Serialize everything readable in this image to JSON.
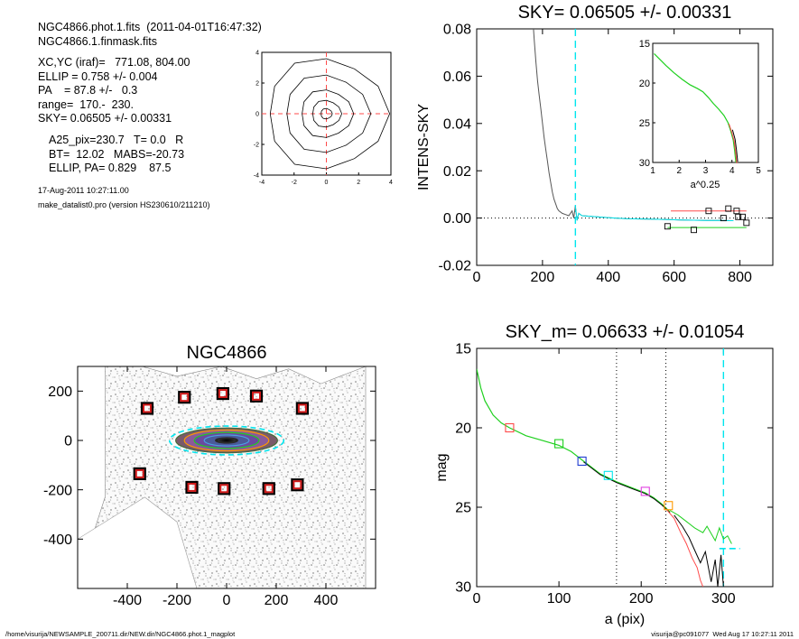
{
  "info": {
    "file_line": "NGC4866.phot.1.fits  (2011-04-01T16:47:32)",
    "mask_line": "NGC4866.1.finmask.fits",
    "xcyc": "XC,YC (iraf)=   771.08, 804.00",
    "ellip": "ELLIP = 0.758 +/- 0.004",
    "pa": "PA    = 87.8 +/-   0.3",
    "range": "range=  170.-  230.",
    "sky": "SKY= 0.06505 +/- 0.00331",
    "a25": "A25_pix=230.7   T= 0.0   R",
    "bt": "BT=  12.02   MABS=-20.73",
    "ellip_pa": "ELLIP, PA= 0.829    87.5",
    "date": "17-Aug-2011 10:27:11.00",
    "program": "make_datalist0.pro (version HS230610/211210)"
  },
  "footer": {
    "left": "/home/visurija/NEWSAMPLE_200711.dir/NEW.dir/NGC4866.phot.1_magplot",
    "right": "visurija@pc091077  Wed Aug 17 10:27:11 2011"
  },
  "colors": {
    "axis": "#000000",
    "cyan": "#00e5ee",
    "green": "#1ed01e",
    "red": "#ff4a4a",
    "blue": "#1f3cd0",
    "orange": "#ff9a00",
    "magenta": "#e040e0",
    "grey": "#555555"
  },
  "chart_data": [
    {
      "id": "contour",
      "type": "contour",
      "xlim": [
        -4,
        4
      ],
      "ylim": [
        -4,
        4
      ],
      "xticks": [
        "-4",
        "-2",
        "0",
        "2",
        "4"
      ],
      "yticks": [
        "-4",
        "-2",
        "0",
        "2",
        "4"
      ]
    },
    {
      "id": "sky",
      "type": "line",
      "title": "SKY= 0.06505 +/- 0.00331",
      "xlabel": "",
      "ylabel": "INTENS-SKY",
      "xlim": [
        0,
        900
      ],
      "ylim": [
        -0.02,
        0.08
      ],
      "xticks": [
        "0",
        "200",
        "400",
        "600",
        "800"
      ],
      "yticks": [
        "-0.02",
        "0.00",
        "0.02",
        "0.04",
        "0.06",
        "0.08"
      ],
      "sky_radius": 300,
      "profile": [
        [
          170,
          0.085
        ],
        [
          175,
          0.075
        ],
        [
          180,
          0.066
        ],
        [
          185,
          0.058
        ],
        [
          190,
          0.052
        ],
        [
          195,
          0.046
        ],
        [
          200,
          0.04
        ],
        [
          205,
          0.034
        ],
        [
          210,
          0.029
        ],
        [
          215,
          0.024
        ],
        [
          220,
          0.019
        ],
        [
          225,
          0.015
        ],
        [
          230,
          0.011
        ],
        [
          235,
          0.008
        ],
        [
          240,
          0.006
        ],
        [
          245,
          0.004
        ],
        [
          250,
          0.003
        ],
        [
          260,
          0.002
        ],
        [
          270,
          0.0015
        ],
        [
          280,
          0.001
        ],
        [
          290,
          0.003
        ],
        [
          295,
          0.0
        ],
        [
          300,
          0.005
        ],
        [
          305,
          -0.001
        ],
        [
          310,
          0.002
        ],
        [
          320,
          0.001
        ],
        [
          340,
          0.0008
        ],
        [
          380,
          0.0004
        ],
        [
          420,
          0.0
        ],
        [
          460,
          -0.0003
        ],
        [
          500,
          -0.0004
        ],
        [
          540,
          -0.0005
        ],
        [
          580,
          -0.0006
        ],
        [
          620,
          -0.0008
        ],
        [
          660,
          -0.0009
        ],
        [
          700,
          -0.001
        ],
        [
          740,
          -0.001
        ],
        [
          780,
          -0.0011
        ]
      ],
      "sky_points": [
        [
          580,
          -0.0035
        ],
        [
          660,
          -0.005
        ],
        [
          705,
          0.003
        ],
        [
          765,
          0.004
        ],
        [
          790,
          0.003
        ],
        [
          795,
          0.0005
        ],
        [
          808,
          0.0005
        ],
        [
          820,
          -0.002
        ],
        [
          750,
          0.0
        ]
      ],
      "red_level": [
        [
          590,
          0.003
        ],
        [
          820,
          0.003
        ]
      ],
      "green_level": [
        [
          580,
          -0.004
        ],
        [
          820,
          -0.004
        ]
      ],
      "inset": {
        "xlabel": "a^0.25",
        "xlim": [
          1,
          5
        ],
        "ylim": [
          30,
          15
        ],
        "xticks": [
          "1",
          "2",
          "3",
          "4",
          "5"
        ],
        "yticks": [
          "15",
          "20",
          "25",
          "30"
        ],
        "profile": [
          [
            1.05,
            16.3
          ],
          [
            1.2,
            16.8
          ],
          [
            1.5,
            17.8
          ],
          [
            1.8,
            18.7
          ],
          [
            2.1,
            19.5
          ],
          [
            2.4,
            20.2
          ],
          [
            2.7,
            20.7
          ],
          [
            2.9,
            21.1
          ],
          [
            3.1,
            21.8
          ],
          [
            3.3,
            22.6
          ],
          [
            3.5,
            23.3
          ],
          [
            3.7,
            24.1
          ],
          [
            3.85,
            25.0
          ],
          [
            3.95,
            26.0
          ],
          [
            4.05,
            27.2
          ],
          [
            4.1,
            28.5
          ],
          [
            4.15,
            30.0
          ]
        ]
      }
    },
    {
      "id": "image",
      "type": "image",
      "title": "NGC4866",
      "xlim": [
        -600,
        600
      ],
      "ylim": [
        -600,
        300
      ],
      "xticks": [
        "-400",
        "-200",
        "0",
        "200",
        "400"
      ],
      "yticks": [
        "-400",
        "-200",
        "0",
        "200"
      ],
      "boxes": [
        [
          -320,
          130
        ],
        [
          -170,
          175
        ],
        [
          -15,
          190
        ],
        [
          120,
          180
        ],
        [
          305,
          130
        ],
        [
          -350,
          -135
        ],
        [
          -140,
          -190
        ],
        [
          -10,
          -195
        ],
        [
          170,
          -195
        ],
        [
          285,
          -180
        ]
      ],
      "ellipses": [
        {
          "a": 230,
          "b": 58,
          "color": "#00e5ee",
          "dashed": true
        },
        {
          "a": 205,
          "b": 50,
          "color": "#4a6a3a",
          "fill": "#7a5a6a"
        },
        {
          "a": 170,
          "b": 42,
          "color": "#ff9a00",
          "fill": "#8a5a9a"
        },
        {
          "a": 130,
          "b": 32,
          "color": "#1ed01e",
          "fill": "#6a4aa0"
        },
        {
          "a": 90,
          "b": 22,
          "color": "#4aa0e0",
          "fill": "#4a5a9a"
        },
        {
          "a": 45,
          "b": 11,
          "color": "#2a2a2a",
          "fill": "#222222"
        }
      ]
    },
    {
      "id": "mag",
      "type": "line",
      "title": "SKY_m=  0.06633 +/- 0.01054",
      "xlabel": "a (pix)",
      "ylabel": "mag",
      "xlim": [
        0,
        360
      ],
      "ylim": [
        30,
        15
      ],
      "xticks": [
        "0",
        "100",
        "200",
        "300"
      ],
      "yticks": [
        "15",
        "20",
        "25",
        "30"
      ],
      "range_lines": [
        170,
        230
      ],
      "sky_line": 300,
      "profile": [
        [
          0,
          16.3
        ],
        [
          5,
          17.5
        ],
        [
          10,
          18.3
        ],
        [
          20,
          19.2
        ],
        [
          30,
          19.7
        ],
        [
          40,
          20.0
        ],
        [
          60,
          20.5
        ],
        [
          80,
          20.8
        ],
        [
          100,
          21.1
        ],
        [
          115,
          21.5
        ],
        [
          130,
          22.1
        ],
        [
          150,
          22.9
        ],
        [
          170,
          23.4
        ],
        [
          190,
          23.8
        ],
        [
          205,
          24.1
        ],
        [
          215,
          24.4
        ],
        [
          225,
          24.8
        ],
        [
          235,
          25.3
        ],
        [
          245,
          25.8
        ],
        [
          255,
          26.3
        ],
        [
          265,
          26.8
        ],
        [
          275,
          27.3
        ],
        [
          285,
          27.8
        ],
        [
          295,
          28.1
        ]
      ],
      "green_tail": [
        [
          235,
          25.2
        ],
        [
          245,
          25.5
        ],
        [
          255,
          25.9
        ],
        [
          265,
          26.3
        ],
        [
          275,
          26.6
        ],
        [
          280,
          26.2
        ],
        [
          290,
          27.1
        ],
        [
          295,
          26.3
        ],
        [
          300,
          27.0
        ],
        [
          305,
          26.8
        ],
        [
          310,
          27.3
        ]
      ],
      "red_tail": [
        [
          230,
          25.1
        ],
        [
          240,
          25.7
        ],
        [
          248,
          26.6
        ],
        [
          255,
          27.3
        ],
        [
          262,
          28.2
        ],
        [
          268,
          28.8
        ],
        [
          272,
          29.6
        ],
        [
          275,
          30.0
        ]
      ],
      "black_tail": [
        [
          240,
          25.5
        ],
        [
          250,
          26.2
        ],
        [
          258,
          26.9
        ],
        [
          265,
          27.7
        ],
        [
          272,
          28.5
        ],
        [
          278,
          27.8
        ],
        [
          285,
          29.7
        ],
        [
          290,
          28.3
        ],
        [
          293,
          30.0
        ],
        [
          297,
          28.0
        ],
        [
          300,
          30.0
        ]
      ],
      "sky_tail": [
        [
          295,
          27.6
        ],
        [
          320,
          27.6
        ]
      ],
      "markers": [
        {
          "x": 40,
          "y": 20.0,
          "color": "#ff4a4a"
        },
        {
          "x": 100,
          "y": 21.0,
          "color": "#1ed01e"
        },
        {
          "x": 128,
          "y": 22.1,
          "color": "#1f3cd0"
        },
        {
          "x": 160,
          "y": 23.0,
          "color": "#00e5ee"
        },
        {
          "x": 205,
          "y": 24.0,
          "color": "#e040e0"
        },
        {
          "x": 233,
          "y": 24.9,
          "color": "#ff9a00"
        }
      ]
    }
  ]
}
